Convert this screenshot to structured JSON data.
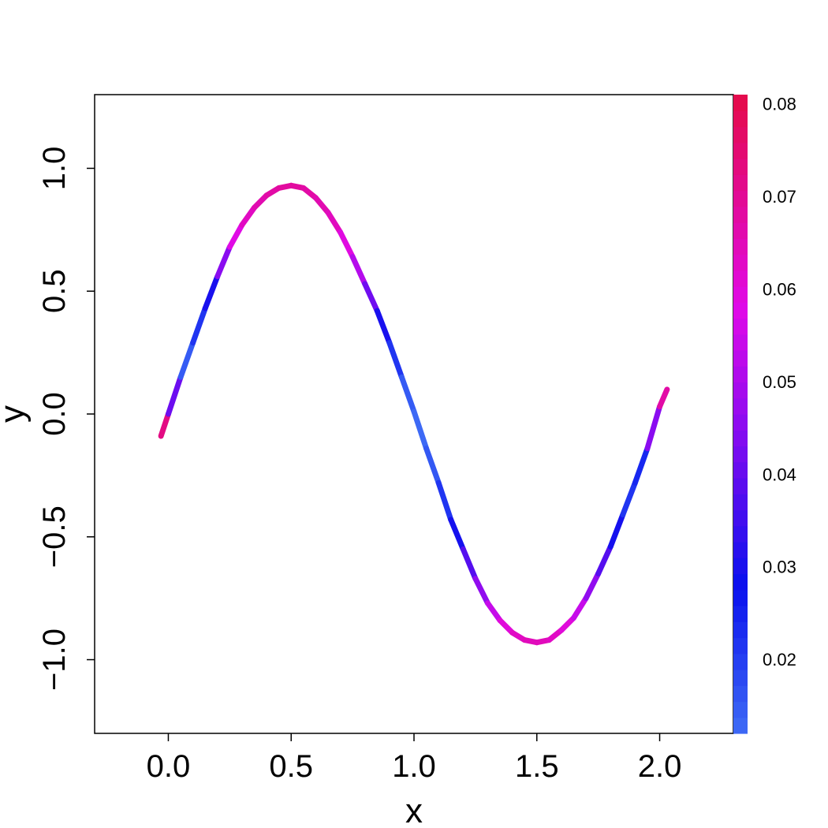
{
  "chart_data": {
    "type": "line",
    "title": "",
    "xlabel": "x",
    "ylabel": "y",
    "xlim": [
      -0.3,
      2.3
    ],
    "ylim": [
      -1.3,
      1.3
    ],
    "x_ticks": [
      0.0,
      0.5,
      1.0,
      1.5,
      2.0
    ],
    "x_tick_labels": [
      "0.0",
      "0.5",
      "1.0",
      "1.5",
      "2.0"
    ],
    "y_ticks": [
      -1.0,
      -0.5,
      0.0,
      0.5,
      1.0
    ],
    "y_tick_labels": [
      "−1.0",
      "−0.5",
      "0.0",
      "0.5",
      "1.0"
    ],
    "grid": false,
    "series": [
      {
        "x": [
          -0.03,
          0.0,
          0.05,
          0.1,
          0.15,
          0.2,
          0.25,
          0.3,
          0.35,
          0.4,
          0.45,
          0.5,
          0.55,
          0.6,
          0.65,
          0.7,
          0.75,
          0.8,
          0.85,
          0.9,
          0.95,
          1.0,
          1.05,
          1.1,
          1.15,
          1.2,
          1.25,
          1.3,
          1.35,
          1.4,
          1.45,
          1.5,
          1.55,
          1.6,
          1.65,
          1.7,
          1.75,
          1.8,
          1.85,
          1.9,
          1.95,
          2.0,
          2.03
        ],
        "y": [
          -0.09,
          0.0,
          0.15,
          0.29,
          0.43,
          0.56,
          0.68,
          0.77,
          0.84,
          0.89,
          0.92,
          0.93,
          0.92,
          0.88,
          0.82,
          0.74,
          0.64,
          0.53,
          0.42,
          0.29,
          0.15,
          0.01,
          -0.14,
          -0.28,
          -0.43,
          -0.55,
          -0.67,
          -0.77,
          -0.84,
          -0.89,
          -0.92,
          -0.93,
          -0.92,
          -0.88,
          -0.83,
          -0.75,
          -0.65,
          -0.54,
          -0.41,
          -0.28,
          -0.14,
          0.03,
          0.1
        ],
        "color_values": [
          0.075,
          0.07,
          0.012,
          0.018,
          0.025,
          0.035,
          0.055,
          0.062,
          0.065,
          0.067,
          0.068,
          0.069,
          0.068,
          0.067,
          0.065,
          0.063,
          0.055,
          0.048,
          0.035,
          0.025,
          0.018,
          0.012,
          0.013,
          0.018,
          0.025,
          0.034,
          0.042,
          0.05,
          0.058,
          0.062,
          0.064,
          0.065,
          0.064,
          0.062,
          0.058,
          0.05,
          0.042,
          0.034,
          0.025,
          0.018,
          0.03,
          0.06,
          0.075
        ]
      }
    ],
    "colorbar": {
      "min": 0.012,
      "max": 0.081,
      "ticks": [
        0.02,
        0.03,
        0.04,
        0.05,
        0.06,
        0.07,
        0.08
      ],
      "tick_labels": [
        "0.02",
        "0.03",
        "0.04",
        "0.05",
        "0.06",
        "0.07",
        "0.08"
      ],
      "stops": [
        {
          "value": 0.012,
          "color": "#3f6cf5"
        },
        {
          "value": 0.028,
          "color": "#0a10ee"
        },
        {
          "value": 0.045,
          "color": "#8a0cf0"
        },
        {
          "value": 0.058,
          "color": "#e00ae8"
        },
        {
          "value": 0.081,
          "color": "#e40c48"
        }
      ]
    }
  }
}
